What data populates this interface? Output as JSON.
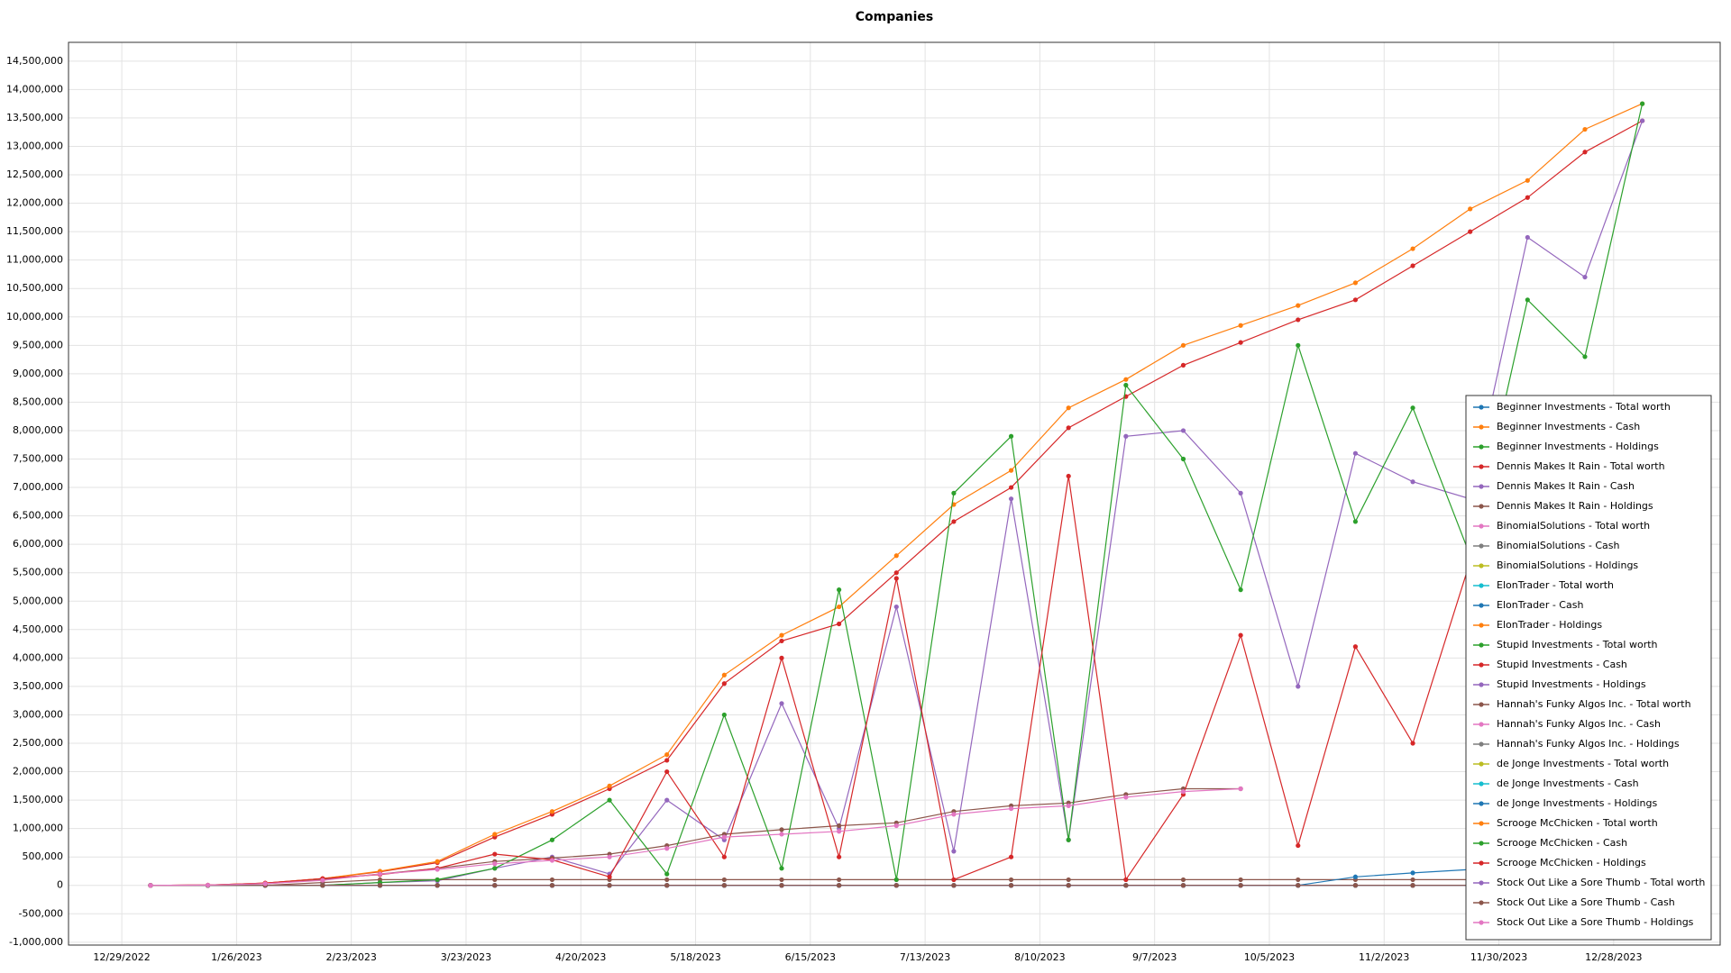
{
  "chart_data": {
    "type": "line",
    "title": "Companies",
    "x": [
      "1/5/2023",
      "1/19/2023",
      "2/2/2023",
      "2/16/2023",
      "3/2/2023",
      "3/16/2023",
      "3/30/2023",
      "4/13/2023",
      "4/27/2023",
      "5/11/2023",
      "5/25/2023",
      "6/8/2023",
      "6/22/2023",
      "7/6/2023",
      "7/20/2023",
      "8/3/2023",
      "8/17/2023",
      "8/31/2023",
      "9/14/2023",
      "9/28/2023",
      "10/12/2023",
      "10/26/2023",
      "11/9/2023",
      "11/23/2023",
      "12/7/2023",
      "12/21/2023",
      "1/4/2024"
    ],
    "xlim": [
      "12/16/2022",
      "1/23/2024"
    ],
    "xticks": [
      "12/29/2022",
      "1/26/2023",
      "2/23/2023",
      "3/23/2023",
      "4/20/2023",
      "5/18/2023",
      "6/15/2023",
      "7/13/2023",
      "8/10/2023",
      "9/7/2023",
      "10/5/2023",
      "11/2/2023",
      "11/30/2023",
      "12/28/2023"
    ],
    "ylim": [
      -1050000,
      14830000
    ],
    "yticks": [
      {
        "value": -1000000,
        "label": "-1,000,000"
      },
      {
        "value": -500000,
        "label": "-500,000"
      },
      0,
      {
        "value": 500000,
        "label": "500,000"
      },
      {
        "value": 1000000,
        "label": "1,000,000"
      },
      {
        "value": 1500000,
        "label": "1,500,000"
      },
      {
        "value": 2000000,
        "label": "2,000,000"
      },
      {
        "value": 2500000,
        "label": "2,500,000"
      },
      {
        "value": 3000000,
        "label": "3,000,000"
      },
      {
        "value": 3500000,
        "label": "3,500,000"
      },
      {
        "value": 4000000,
        "label": "4,000,000"
      },
      {
        "value": 4500000,
        "label": "4,500,000"
      },
      {
        "value": 5000000,
        "label": "5,000,000"
      },
      {
        "value": 5500000,
        "label": "5,500,000"
      },
      {
        "value": 6000000,
        "label": "6,000,000"
      },
      {
        "value": 6500000,
        "label": "6,500,000"
      },
      {
        "value": 7000000,
        "label": "7,000,000"
      },
      {
        "value": 7500000,
        "label": "7,500,000"
      },
      {
        "value": 8000000,
        "label": "8,000,000"
      },
      {
        "value": 8500000,
        "label": "8,500,000"
      },
      {
        "value": 9000000,
        "label": "9,000,000"
      },
      {
        "value": 9500000,
        "label": "9,500,000"
      },
      {
        "value": 10000000,
        "label": "10,000,000"
      },
      {
        "value": 10500000,
        "label": "10,500,000"
      },
      {
        "value": 11000000,
        "label": "11,000,000"
      },
      {
        "value": 11500000,
        "label": "11,500,000"
      },
      {
        "value": 12000000,
        "label": "12,000,000"
      },
      {
        "value": 12500000,
        "label": "12,500,000"
      },
      {
        "value": 13000000,
        "label": "13,000,000"
      },
      {
        "value": 13500000,
        "label": "13,500,000"
      },
      {
        "value": 14000000,
        "label": "14,000,000"
      },
      {
        "value": 14500000,
        "label": "14,500,000"
      }
    ],
    "grid": true,
    "legend": "lower right",
    "series": [
      {
        "name": "Beginner Investments - Total worth",
        "color": "#1f77b4",
        "values": [
          0,
          0,
          0,
          0,
          0,
          0,
          0,
          0,
          0,
          0,
          0,
          0,
          0,
          0,
          0,
          0,
          0,
          0,
          0,
          0,
          0,
          0,
          0,
          0,
          0,
          0,
          0
        ]
      },
      {
        "name": "Beginner Investments - Cash",
        "color": "#ff7f0e",
        "values": [
          0,
          0,
          0,
          0,
          0,
          0,
          0,
          0,
          0,
          0,
          0,
          0,
          0,
          0,
          0,
          0,
          0,
          0,
          0,
          0,
          0,
          0,
          0,
          0,
          0,
          0,
          0
        ]
      },
      {
        "name": "Beginner Investments - Holdings",
        "color": "#2ca02c",
        "values": [
          0,
          0,
          0,
          0,
          0,
          0,
          0,
          0,
          0,
          0,
          0,
          0,
          0,
          0,
          0,
          0,
          0,
          0,
          0,
          0,
          0,
          0,
          0,
          0,
          0,
          0,
          0
        ]
      },
      {
        "name": "Dennis Makes It Rain - Total worth",
        "color": "#d62728",
        "values": [
          0,
          5000,
          40000,
          120000,
          240000,
          400000,
          850000,
          1250000,
          1700000,
          2200000,
          3550000,
          4300000,
          4600000,
          5500000,
          6400000,
          7000000,
          8050000,
          8600000,
          9150000,
          9550000,
          9950000,
          10300000,
          10900000,
          11500000,
          12100000,
          12900000,
          13450000
        ]
      },
      {
        "name": "Dennis Makes It Rain - Cash",
        "color": "#9467bd",
        "values": [
          0,
          0,
          0,
          0,
          50000,
          80000,
          300000,
          500000,
          200000,
          1500000,
          800000,
          3200000,
          1000000,
          4900000,
          600000,
          6800000,
          800000,
          7900000,
          8000000,
          6900000,
          3500000,
          7600000,
          7100000,
          6800000,
          11400000,
          10700000,
          13450000
        ]
      },
      {
        "name": "Dennis Makes It Rain - Holdings",
        "color": "#8c564b",
        "values": [
          0,
          0,
          0,
          50000,
          100000,
          100000,
          100000,
          100000,
          100000,
          100000,
          100000,
          100000,
          100000,
          100000,
          100000,
          100000,
          100000,
          100000,
          100000,
          100000,
          100000,
          100000,
          100000,
          100000,
          100000,
          100000,
          0
        ]
      },
      {
        "name": "BinomialSolutions - Total worth",
        "color": "#e377c2",
        "values": [
          0,
          0,
          0,
          0,
          0,
          0,
          0,
          0,
          0,
          0,
          0,
          0,
          0,
          0,
          0,
          0,
          0,
          0,
          0,
          0,
          0,
          0,
          0,
          0,
          0,
          0,
          0
        ]
      },
      {
        "name": "BinomialSolutions - Cash",
        "color": "#7f7f7f",
        "values": [
          0,
          0,
          0,
          0,
          0,
          0,
          0,
          0,
          0,
          0,
          0,
          0,
          0,
          0,
          0,
          0,
          0,
          0,
          0,
          0,
          0,
          0,
          0,
          0,
          0,
          0,
          0
        ]
      },
      {
        "name": "BinomialSolutions - Holdings",
        "color": "#bcbd22",
        "values": [
          0,
          0,
          0,
          0,
          0,
          0,
          0,
          0,
          0,
          0,
          0,
          0,
          0,
          0,
          0,
          0,
          0,
          0,
          0,
          0,
          0,
          0,
          0,
          0,
          0,
          0,
          0
        ]
      },
      {
        "name": "ElonTrader - Total worth",
        "color": "#17becf",
        "values": [
          0,
          0,
          0,
          0,
          0,
          0,
          0,
          0,
          0,
          0,
          0,
          0,
          0,
          0,
          0,
          0,
          0,
          0,
          0,
          0,
          0,
          0,
          0,
          0,
          0,
          0,
          0
        ]
      },
      {
        "name": "ElonTrader - Cash",
        "color": "#1f77b4",
        "values": [
          0,
          0,
          0,
          0,
          0,
          0,
          0,
          0,
          0,
          0,
          0,
          0,
          0,
          0,
          0,
          0,
          0,
          0,
          0,
          0,
          0,
          0,
          0,
          0,
          0,
          0,
          0
        ]
      },
      {
        "name": "ElonTrader - Holdings",
        "color": "#ff7f0e",
        "values": [
          0,
          0,
          0,
          0,
          0,
          0,
          0,
          0,
          0,
          0,
          0,
          0,
          0,
          0,
          0,
          0,
          0,
          0,
          0,
          0,
          0,
          0,
          0,
          0,
          0,
          0,
          0
        ]
      },
      {
        "name": "Stupid Investments - Total worth",
        "color": "#2ca02c",
        "values": [
          0,
          0,
          0,
          0,
          0,
          0,
          0,
          0,
          0,
          0,
          0,
          0,
          0,
          0,
          0,
          0,
          0,
          0,
          0,
          0,
          0,
          0,
          0,
          0,
          0,
          0,
          0
        ]
      },
      {
        "name": "Stupid Investments - Cash",
        "color": "#d62728",
        "values": [
          0,
          0,
          0,
          0,
          0,
          0,
          0,
          0,
          0,
          0,
          0,
          0,
          0,
          0,
          0,
          0,
          0,
          0,
          0,
          0,
          0,
          0,
          0,
          0,
          0,
          0,
          0
        ]
      },
      {
        "name": "Stupid Investments - Holdings",
        "color": "#9467bd",
        "values": [
          0,
          0,
          0,
          0,
          0,
          0,
          0,
          0,
          0,
          0,
          0,
          0,
          0,
          0,
          0,
          0,
          0,
          0,
          0,
          0,
          0,
          0,
          0,
          0,
          0,
          0,
          0
        ]
      },
      {
        "name": "Hannah's Funky Algos Inc. - Total worth",
        "color": "#8c564b",
        "values": [
          0,
          5000,
          30000,
          100000,
          200000,
          300000,
          420000,
          480000,
          550000,
          700000,
          900000,
          980000,
          1050000,
          1100000,
          1300000,
          1400000,
          1450000,
          1600000,
          1700000,
          1700000,
          null,
          null,
          null,
          null,
          null,
          null,
          null
        ]
      },
      {
        "name": "Hannah's Funky Algos Inc. - Cash",
        "color": "#e377c2",
        "values": [
          0,
          0,
          0,
          0,
          0,
          0,
          0,
          0,
          0,
          0,
          0,
          0,
          0,
          0,
          0,
          0,
          0,
          0,
          0,
          0,
          0,
          0,
          0,
          0,
          0,
          0,
          0
        ]
      },
      {
        "name": "Hannah's Funky Algos Inc. - Holdings",
        "color": "#7f7f7f",
        "values": [
          0,
          0,
          0,
          0,
          0,
          0,
          0,
          0,
          0,
          0,
          0,
          0,
          0,
          0,
          0,
          0,
          0,
          0,
          0,
          0,
          0,
          0,
          0,
          0,
          0,
          0,
          0
        ]
      },
      {
        "name": "de Jonge Investments - Total worth",
        "color": "#bcbd22",
        "values": [
          0,
          0,
          0,
          0,
          0,
          0,
          0,
          0,
          0,
          0,
          0,
          0,
          0,
          0,
          0,
          0,
          0,
          0,
          0,
          0,
          0,
          0,
          0,
          0,
          0,
          0,
          0
        ]
      },
      {
        "name": "de Jonge Investments - Cash",
        "color": "#17becf",
        "values": [
          0,
          0,
          0,
          0,
          0,
          0,
          0,
          0,
          0,
          0,
          0,
          0,
          0,
          0,
          0,
          0,
          0,
          0,
          0,
          0,
          0,
          0,
          0,
          0,
          0,
          0,
          0
        ]
      },
      {
        "name": "de Jonge Investments - Holdings",
        "color": "#1f77b4",
        "values": [
          0,
          0,
          0,
          0,
          0,
          0,
          0,
          0,
          0,
          0,
          0,
          0,
          0,
          0,
          0,
          0,
          0,
          0,
          0,
          0,
          0,
          150000,
          220000,
          280000,
          380000,
          null,
          null
        ]
      },
      {
        "name": "Scrooge McChicken - Total worth",
        "color": "#ff7f0e",
        "values": [
          0,
          5000,
          40000,
          120000,
          250000,
          420000,
          900000,
          1300000,
          1750000,
          2300000,
          3700000,
          4400000,
          4900000,
          5800000,
          6700000,
          7300000,
          8400000,
          8900000,
          9500000,
          9850000,
          10200000,
          10600000,
          11200000,
          11900000,
          12400000,
          13300000,
          13750000
        ]
      },
      {
        "name": "Scrooge McChicken - Cash",
        "color": "#2ca02c",
        "values": [
          0,
          0,
          0,
          0,
          50000,
          100000,
          300000,
          800000,
          1500000,
          200000,
          3000000,
          300000,
          5200000,
          100000,
          6900000,
          7900000,
          800000,
          8800000,
          7500000,
          5200000,
          9500000,
          6400000,
          8400000,
          5800000,
          10300000,
          9300000,
          13750000
        ]
      },
      {
        "name": "Scrooge McChicken - Holdings",
        "color": "#d62728",
        "values": [
          0,
          5000,
          40000,
          120000,
          190000,
          300000,
          550000,
          450000,
          150000,
          2000000,
          500000,
          4000000,
          500000,
          5400000,
          100000,
          500000,
          7200000,
          100000,
          1600000,
          4400000,
          700000,
          4200000,
          2500000,
          5700000,
          1800000,
          3900000,
          0
        ]
      },
      {
        "name": "Stock Out Like a Sore Thumb - Total worth",
        "color": "#9467bd",
        "values": [
          0,
          0,
          0,
          0,
          0,
          0,
          0,
          0,
          0,
          0,
          0,
          0,
          0,
          0,
          0,
          0,
          0,
          0,
          0,
          0,
          0,
          0,
          0,
          0,
          0,
          0,
          0
        ]
      },
      {
        "name": "Stock Out Like a Sore Thumb - Cash",
        "color": "#8c564b",
        "values": [
          0,
          0,
          0,
          0,
          0,
          0,
          0,
          0,
          0,
          0,
          0,
          0,
          0,
          0,
          0,
          0,
          0,
          0,
          0,
          0,
          0,
          0,
          0,
          0,
          0,
          0,
          0
        ]
      },
      {
        "name": "Stock Out Like a Sore Thumb - Holdings",
        "color": "#e377c2",
        "values": [
          0,
          5000,
          30000,
          90000,
          200000,
          280000,
          380000,
          440000,
          500000,
          650000,
          850000,
          900000,
          950000,
          1050000,
          1250000,
          1350000,
          1400000,
          1550000,
          1650000,
          1700000,
          null,
          null,
          null,
          null,
          null,
          null,
          null
        ]
      }
    ]
  }
}
